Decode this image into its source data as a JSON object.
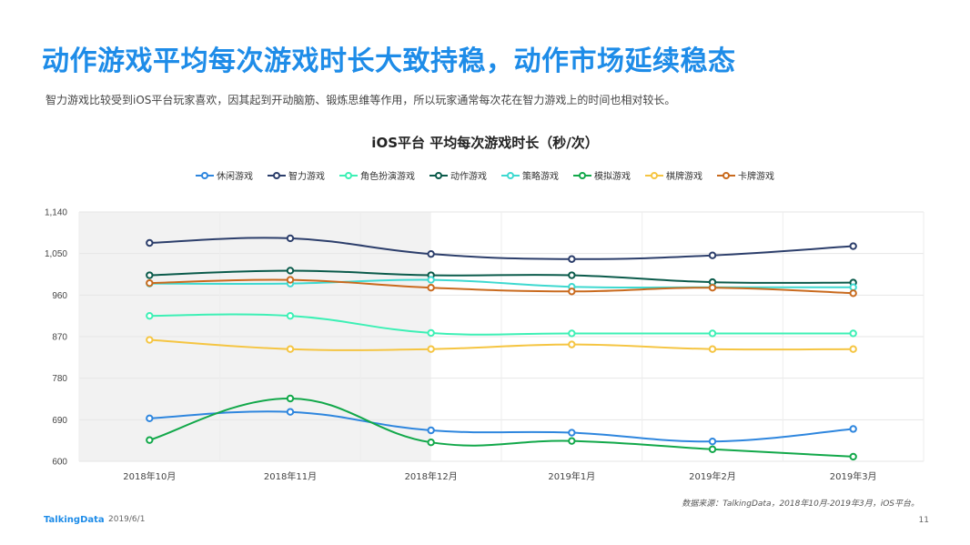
{
  "header": {
    "title": "动作游戏平均每次游戏时长大致持稳，动作市场延续稳态",
    "subtitle": "智力游戏比较受到iOS平台玩家喜欢，因其起到开动脑筋、锻炼思维等作用，所以玩家通常每次花在智力游戏上的时间也相对较长。"
  },
  "chart_data": {
    "type": "line",
    "title": "iOS平台  平均每次游戏时长（秒/次）",
    "categories": [
      "2018年10月",
      "2018年11月",
      "2018年12月",
      "2019年1月",
      "2019年2月",
      "2019年3月"
    ],
    "ylim": [
      600,
      1140
    ],
    "yticks": [
      "600",
      "690",
      "780",
      "870",
      "960",
      "1,050",
      "1,140"
    ],
    "ytick_values": [
      600,
      690,
      780,
      870,
      960,
      1050,
      1140
    ],
    "grid": true,
    "legend_position": "top-center",
    "highlight_region": {
      "from": "2018年10月",
      "to": "2018年12月",
      "color": "#F2F2F2"
    },
    "series": [
      {
        "name": "休闲游戏",
        "color": "#2E86DE",
        "values": [
          693,
          707,
          667,
          662,
          643,
          670
        ]
      },
      {
        "name": "智力游戏",
        "color": "#2C3E6B",
        "values": [
          1073,
          1083,
          1049,
          1038,
          1046,
          1066
        ]
      },
      {
        "name": "角色扮演游戏",
        "color": "#3DF0B5",
        "values": [
          915,
          915,
          878,
          877,
          877,
          877
        ]
      },
      {
        "name": "动作游戏",
        "color": "#0B5B4B",
        "values": [
          1003,
          1013,
          1003,
          1003,
          988,
          987
        ]
      },
      {
        "name": "策略游戏",
        "color": "#3ED9D0",
        "values": [
          985,
          985,
          993,
          978,
          977,
          977
        ]
      },
      {
        "name": "模拟游戏",
        "color": "#12A84A",
        "values": [
          646,
          736,
          641,
          644,
          626,
          610
        ]
      },
      {
        "name": "棋牌游戏",
        "color": "#F5C542",
        "values": [
          863,
          843,
          843,
          853,
          843,
          843
        ]
      },
      {
        "name": "卡牌游戏",
        "color": "#C96A1E",
        "values": [
          986,
          993,
          976,
          968,
          976,
          964
        ]
      }
    ]
  },
  "footer": {
    "source": "数据来源：TalkingData，2018年10月-2019年3月，iOS平台。",
    "logo": "TalkingData",
    "date": "2019/6/1",
    "page": "11"
  }
}
